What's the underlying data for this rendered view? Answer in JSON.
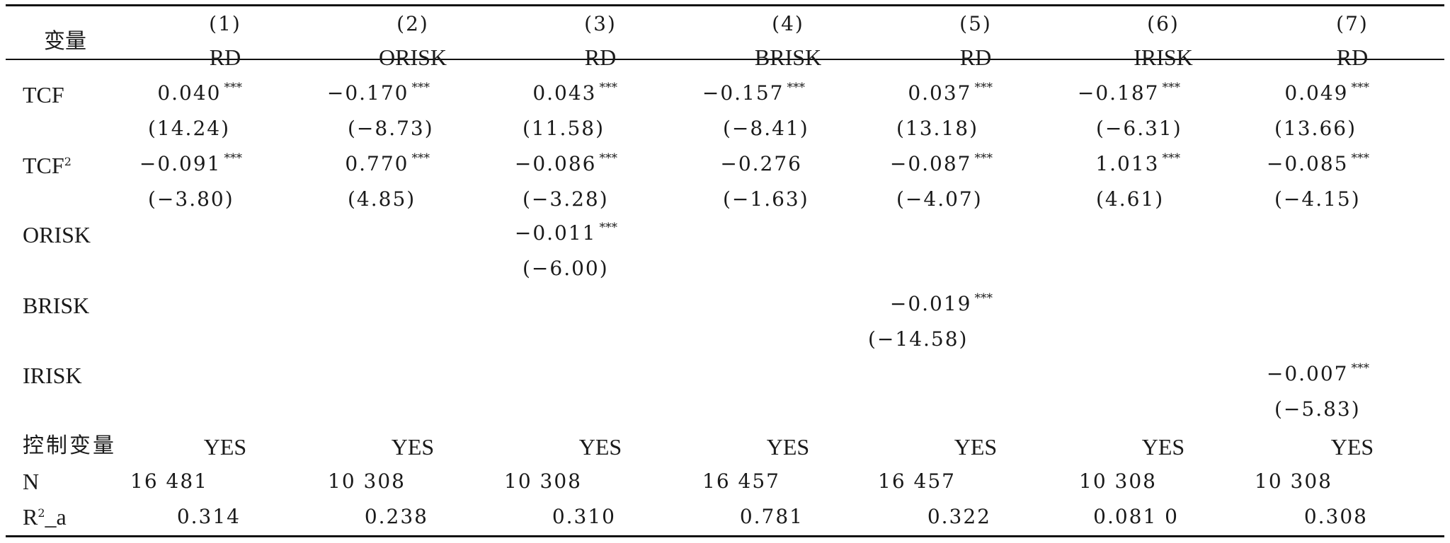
{
  "table": {
    "var_header": "变量",
    "model_numbers": [
      "(1)",
      "(2)",
      "(3)",
      "(4)",
      "(5)",
      "(6)",
      "(7)"
    ],
    "dependent_vars": [
      "RD",
      "ORISK",
      "RD",
      "BRISK",
      "RD",
      "IRISK",
      "RD"
    ],
    "rows": [
      {
        "label": "TCF",
        "coef": [
          "0.040",
          "−0.170",
          "0.043",
          "−0.157",
          "0.037",
          "−0.187",
          "0.049"
        ],
        "sig": [
          "***",
          "***",
          "***",
          "***",
          "***",
          "***",
          "***"
        ],
        "t": [
          "(14.24)",
          "(−8.73)",
          "(11.58)",
          "(−8.41)",
          "(13.18)",
          "(−6.31)",
          "(13.66)"
        ]
      },
      {
        "label": "TCF",
        "label_sup": "2",
        "coef": [
          "−0.091",
          "0.770",
          "−0.086",
          "−0.276",
          "−0.087",
          "1.013",
          "−0.085"
        ],
        "sig": [
          "***",
          "***",
          "***",
          "",
          "***",
          "***",
          "***"
        ],
        "t": [
          "(−3.80)",
          "(4.85)",
          "(−3.28)",
          "(−1.63)",
          "(−4.07)",
          "(4.61)",
          "(−4.15)"
        ]
      },
      {
        "label": "ORISK",
        "coef": [
          "",
          "",
          "−0.011",
          "",
          "",
          "",
          ""
        ],
        "sig": [
          "",
          "",
          "***",
          "",
          "",
          "",
          ""
        ],
        "t": [
          "",
          "",
          "(−6.00)",
          "",
          "",
          "",
          ""
        ]
      },
      {
        "label": "BRISK",
        "coef": [
          "",
          "",
          "",
          "",
          "−0.019",
          "",
          ""
        ],
        "sig": [
          "",
          "",
          "",
          "",
          "***",
          "",
          ""
        ],
        "t": [
          "",
          "",
          "",
          "",
          "(−14.58)",
          "",
          ""
        ]
      },
      {
        "label": "IRISK",
        "coef": [
          "",
          "",
          "",
          "",
          "",
          "",
          "−0.007"
        ],
        "sig": [
          "",
          "",
          "",
          "",
          "",
          "",
          "***"
        ],
        "t": [
          "",
          "",
          "",
          "",
          "",
          "",
          "(−5.83)"
        ]
      }
    ],
    "controls": {
      "label": "控制变量",
      "values": [
        "YES",
        "YES",
        "YES",
        "YES",
        "YES",
        "YES",
        "YES"
      ]
    },
    "n": {
      "label": "N",
      "values": [
        "16 481",
        "10 308",
        "10 308",
        "16 457",
        "16 457",
        "10 308",
        "10 308"
      ]
    },
    "r2": {
      "label": "R",
      "label_sup": "2",
      "label_suffix": "_a",
      "values": [
        "0.314",
        "0.238",
        "0.310",
        "0.781",
        "0.322",
        "0.081 0",
        "0.308"
      ]
    }
  }
}
